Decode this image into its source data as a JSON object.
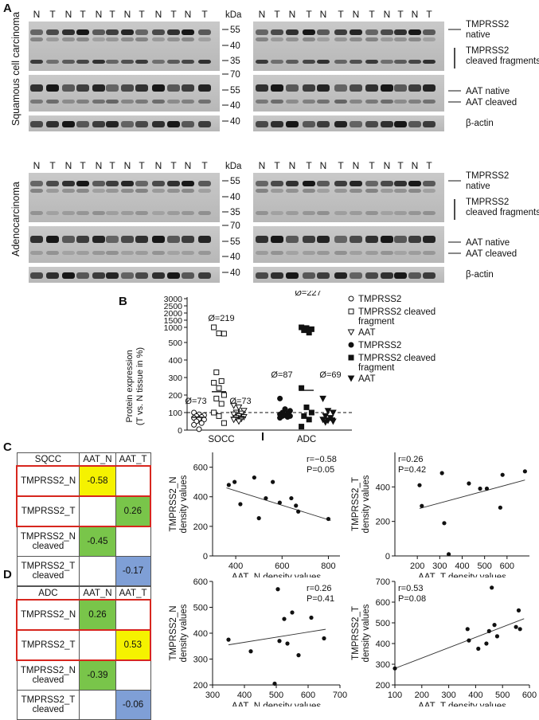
{
  "panels": {
    "A": "A",
    "B": "B",
    "C": "C",
    "D": "D"
  },
  "panel_a": {
    "lane_labels": [
      "N",
      "T",
      "N",
      "T",
      "N",
      "T",
      "N",
      "T",
      "N",
      "T",
      "N",
      "T"
    ],
    "kda_label": "kDa",
    "markers_top": [
      "55",
      "40",
      "35",
      "70",
      "55",
      "40",
      "40"
    ],
    "markers_bottom": [
      "55",
      "40",
      "35",
      "70",
      "55",
      "40",
      "40"
    ],
    "row_titles": [
      "Squamous cell carcinoma",
      "Adenocarcinoma"
    ],
    "band_labels": {
      "tmprss2_native": "TMPRSS2\nnative",
      "tmprss2_cleaved": "TMPRSS2\ncleaved fragments",
      "aat_native": "AAT native",
      "aat_cleaved": "AAT cleaved",
      "actin": "β-actin"
    }
  },
  "panel_b": {
    "ylabel_1": "Protein expression",
    "ylabel_2": "(T vs. N tissue in %)",
    "yticks": [
      "3000",
      "2500",
      "2000",
      "1500",
      "1000",
      "500",
      "400",
      "300",
      "200",
      "100",
      "0"
    ],
    "groups": [
      "SQCC",
      "ADC"
    ],
    "means": [
      "Ø=73",
      "Ø=219",
      "Ø=73",
      "Ø=87",
      "Ø=227",
      "Ø=69"
    ],
    "legend": [
      {
        "symbol": "open-circle",
        "label": "TMPRSS2"
      },
      {
        "symbol": "open-square",
        "label": "TMPRSS2 cleaved\nfragment"
      },
      {
        "symbol": "open-triangle",
        "label": "AAT"
      },
      {
        "symbol": "filled-circle",
        "label": "TMPRSS2"
      },
      {
        "symbol": "filled-square",
        "label": "TMPRSS2 cleaved\nfragment"
      },
      {
        "symbol": "filled-triangle",
        "label": "AAT"
      }
    ],
    "chart_data": {
      "type": "scatter",
      "reference_line": 100,
      "series": [
        {
          "group": "SQCC",
          "values": [
            100,
            90,
            85,
            80,
            75,
            70,
            65,
            60,
            50,
            40,
            30,
            5
          ],
          "mean": 73
        },
        {
          "group": "SQCC",
          "values": [
            1000,
            580,
            560,
            330,
            280,
            270,
            240,
            200,
            180,
            150,
            100,
            80,
            40
          ],
          "mean": 219
        },
        {
          "group": "SQCC",
          "values": [
            140,
            130,
            110,
            100,
            95,
            90,
            80,
            75,
            70,
            65,
            60,
            50
          ],
          "mean": 73
        },
        {
          "group": "ADC",
          "values": [
            180,
            120,
            110,
            100,
            95,
            90,
            85,
            80,
            80,
            75,
            70
          ],
          "mean": 87
        },
        {
          "group": "ADC",
          "values": [
            1000,
            950,
            870,
            800,
            630,
            240,
            130,
            100,
            80,
            60,
            20
          ],
          "mean": 227
        },
        {
          "group": "ADC",
          "values": [
            180,
            110,
            100,
            80,
            70,
            60,
            55,
            50,
            45
          ],
          "mean": 69
        }
      ]
    }
  },
  "table_c": {
    "header": [
      "SQCC",
      "AAT_N",
      "AAT_T"
    ],
    "rows": [
      {
        "label": "TMPRSS2_N",
        "aat_n": "-0.58",
        "aat_t": ""
      },
      {
        "label": "TMPRSS2_T",
        "aat_n": "",
        "aat_t": "0.26"
      },
      {
        "label": "TMPRSS2_N\ncleaved",
        "aat_n": "-0.45",
        "aat_t": ""
      },
      {
        "label": "TMPRSS2_T\ncleaved",
        "aat_n": "",
        "aat_t": "-0.17"
      }
    ]
  },
  "table_d": {
    "header": [
      "ADC",
      "AAT_N",
      "AAT_T"
    ],
    "rows": [
      {
        "label": "TMPRSS2_N",
        "aat_n": "0.26",
        "aat_t": ""
      },
      {
        "label": "TMPRSS2_T",
        "aat_n": "",
        "aat_t": "0.53"
      },
      {
        "label": "TMPRSS2_N\ncleaved",
        "aat_n": "-0.39",
        "aat_t": ""
      },
      {
        "label": "TMPRSS2_T\ncleaved",
        "aat_n": "",
        "aat_t": "-0.06"
      }
    ]
  },
  "colors": {
    "yellow": "#f5f200",
    "green": "#79c54a",
    "blue": "#7f9fd6",
    "red_border": "#d7261e"
  },
  "chart_data": [
    {
      "type": "scatter",
      "id": "c1",
      "xlabel": "AAT_N density values",
      "ylabel": "TMPRSS2_N\ndensity values",
      "xlim": [
        300,
        850
      ],
      "ylim": [
        0,
        700
      ],
      "xticks": [
        400,
        600,
        800
      ],
      "yticks": [
        0,
        200,
        400,
        600
      ],
      "annotation": [
        "r=−0.58",
        "P=0.05"
      ],
      "x": [
        370,
        395,
        420,
        480,
        500,
        530,
        560,
        590,
        640,
        660,
        670,
        800
      ],
      "y": [
        480,
        500,
        350,
        530,
        255,
        390,
        500,
        360,
        390,
        340,
        300,
        250
      ],
      "fit": [
        [
          360,
          460
        ],
        [
          810,
          240
        ]
      ]
    },
    {
      "type": "scatter",
      "id": "c2",
      "xlabel": "AAT_T density values",
      "ylabel": "TMPRSS2_T\ndensity values",
      "xlim": [
        100,
        700
      ],
      "ylim": [
        0,
        600
      ],
      "xticks": [
        200,
        300,
        400,
        500,
        600
      ],
      "yticks": [
        0,
        200,
        400
      ],
      "annotation": [
        "r=0.26",
        "P=0.42"
      ],
      "x": [
        210,
        220,
        310,
        320,
        340,
        430,
        480,
        510,
        570,
        580,
        680
      ],
      "y": [
        410,
        290,
        480,
        190,
        10,
        420,
        390,
        390,
        280,
        470,
        490
      ],
      "fit": [
        [
          210,
          275
        ],
        [
          680,
          440
        ]
      ]
    },
    {
      "type": "scatter",
      "id": "d1",
      "xlabel": "AAT_N density values",
      "ylabel": "TMPRSS2_N\ndensity values",
      "xlim": [
        300,
        700
      ],
      "ylim": [
        200,
        600
      ],
      "xticks": [
        300,
        400,
        500,
        600,
        700
      ],
      "yticks": [
        200,
        300,
        400,
        500,
        600
      ],
      "annotation": [
        "r=0.26",
        "P=0.41"
      ],
      "x": [
        350,
        420,
        495,
        505,
        510,
        525,
        535,
        550,
        570,
        610,
        650
      ],
      "y": [
        375,
        330,
        205,
        570,
        370,
        455,
        360,
        480,
        315,
        460,
        380
      ],
      "fit": [
        [
          350,
          355
        ],
        [
          655,
          415
        ]
      ]
    },
    {
      "type": "scatter",
      "id": "d2",
      "xlabel": "AAT_T density values",
      "ylabel": "TMPRSS2_T\ndensity values",
      "xlim": [
        100,
        600
      ],
      "ylim": [
        200,
        700
      ],
      "xticks": [
        100,
        200,
        300,
        400,
        500,
        600
      ],
      "yticks": [
        200,
        300,
        400,
        500,
        600,
        700
      ],
      "annotation": [
        "r=0.53",
        "P=0.08"
      ],
      "x": [
        100,
        370,
        375,
        410,
        440,
        450,
        460,
        470,
        480,
        550,
        560,
        565
      ],
      "y": [
        280,
        470,
        415,
        375,
        400,
        460,
        670,
        490,
        435,
        480,
        560,
        470
      ],
      "fit": [
        [
          100,
          280
        ],
        [
          580,
          520
        ]
      ]
    }
  ]
}
